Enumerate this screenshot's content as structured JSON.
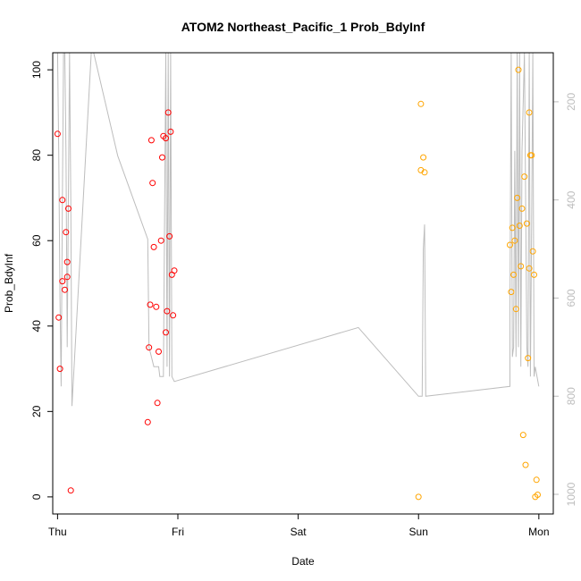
{
  "chart_data": {
    "type": "scatter",
    "title": "ATOM2 Northeast_Pacific_1 Prob_BdyInf",
    "xlabel": "Date",
    "ylabel": "Prob_BdyInf",
    "x_ticks": [
      "Thu",
      "Fri",
      "Sat",
      "Sun",
      "Mon"
    ],
    "xlim": [
      -0.04,
      4.12
    ],
    "ylim": [
      -4,
      104
    ],
    "y_ticks": [
      0,
      20,
      40,
      60,
      80,
      100
    ],
    "y2_ticks": [
      200,
      400,
      600,
      800,
      1000
    ],
    "y2lim": [
      1040,
      100
    ],
    "grid": false,
    "series": [
      {
        "color": "#ff0000",
        "points": [
          [
            0.0,
            85.0
          ],
          [
            0.01,
            42.0
          ],
          [
            0.02,
            30.0
          ],
          [
            0.04,
            69.5
          ],
          [
            0.04,
            50.5
          ],
          [
            0.06,
            48.5
          ],
          [
            0.07,
            62.0
          ],
          [
            0.08,
            51.5
          ],
          [
            0.08,
            55.0
          ],
          [
            0.09,
            67.5
          ],
          [
            0.11,
            1.5
          ],
          [
            0.75,
            17.5
          ],
          [
            0.76,
            35.0
          ],
          [
            0.77,
            45.0
          ],
          [
            0.78,
            83.5
          ],
          [
            0.79,
            73.5
          ],
          [
            0.8,
            58.5
          ],
          [
            0.82,
            44.5
          ],
          [
            0.83,
            22.0
          ],
          [
            0.84,
            34.0
          ],
          [
            0.86,
            60.0
          ],
          [
            0.87,
            79.5
          ],
          [
            0.88,
            84.5
          ],
          [
            0.9,
            38.5
          ],
          [
            0.9,
            84.0
          ],
          [
            0.91,
            43.5
          ],
          [
            0.92,
            90.0
          ],
          [
            0.93,
            61.0
          ],
          [
            0.94,
            85.5
          ],
          [
            0.95,
            52.0
          ],
          [
            0.96,
            42.5
          ],
          [
            0.97,
            53.0
          ]
        ]
      },
      {
        "color": "#ffa500",
        "points": [
          [
            3.0,
            0.0
          ],
          [
            3.02,
            92.0
          ],
          [
            3.02,
            76.5
          ],
          [
            3.04,
            79.5
          ],
          [
            3.05,
            76.0
          ],
          [
            3.76,
            59.0
          ],
          [
            3.77,
            48.0
          ],
          [
            3.78,
            63.0
          ],
          [
            3.79,
            52.0
          ],
          [
            3.8,
            60.0
          ],
          [
            3.81,
            44.0
          ],
          [
            3.82,
            70.0
          ],
          [
            3.83,
            100.0
          ],
          [
            3.84,
            63.5
          ],
          [
            3.85,
            54.0
          ],
          [
            3.86,
            67.5
          ],
          [
            3.87,
            14.5
          ],
          [
            3.88,
            75.0
          ],
          [
            3.89,
            7.5
          ],
          [
            3.9,
            64.0
          ],
          [
            3.91,
            32.5
          ],
          [
            3.92,
            90.0
          ],
          [
            3.92,
            53.5
          ],
          [
            3.93,
            80.0
          ],
          [
            3.94,
            80.0
          ],
          [
            3.95,
            57.5
          ],
          [
            3.96,
            52.0
          ],
          [
            3.97,
            0.0
          ],
          [
            3.98,
            4.0
          ],
          [
            3.99,
            0.5
          ]
        ]
      }
    ],
    "depth_line": {
      "color": "#bdbdbd",
      "points": [
        [
          0.0,
          100
        ],
        [
          0.01,
          300
        ],
        [
          0.02,
          600
        ],
        [
          0.03,
          780
        ],
        [
          0.04,
          400
        ],
        [
          0.05,
          100
        ],
        [
          0.06,
          100
        ],
        [
          0.07,
          300
        ],
        [
          0.08,
          700
        ],
        [
          0.09,
          400
        ],
        [
          0.1,
          100
        ],
        [
          0.11,
          400
        ],
        [
          0.12,
          820
        ],
        [
          0.28,
          100
        ],
        [
          0.3,
          100
        ],
        [
          0.5,
          310
        ],
        [
          0.75,
          480
        ],
        [
          0.76,
          700
        ],
        [
          0.78,
          720
        ],
        [
          0.8,
          740
        ],
        [
          0.84,
          740
        ],
        [
          0.85,
          760
        ],
        [
          0.86,
          760
        ],
        [
          0.88,
          760
        ],
        [
          0.9,
          100
        ],
        [
          0.91,
          740
        ],
        [
          0.92,
          100
        ],
        [
          0.93,
          760
        ],
        [
          0.94,
          100
        ],
        [
          0.95,
          760
        ],
        [
          0.97,
          770
        ],
        [
          2.5,
          660
        ],
        [
          3.0,
          800
        ],
        [
          3.03,
          800
        ],
        [
          3.04,
          500
        ],
        [
          3.05,
          450
        ],
        [
          3.06,
          800
        ],
        [
          3.76,
          780
        ],
        [
          3.76,
          620
        ],
        [
          3.77,
          100
        ],
        [
          3.78,
          720
        ],
        [
          3.79,
          700
        ],
        [
          3.8,
          300
        ],
        [
          3.81,
          720
        ],
        [
          3.82,
          100
        ],
        [
          3.83,
          700
        ],
        [
          3.84,
          100
        ],
        [
          3.85,
          740
        ],
        [
          3.86,
          300
        ],
        [
          3.88,
          100
        ],
        [
          3.9,
          700
        ],
        [
          3.91,
          740
        ],
        [
          3.92,
          100
        ],
        [
          3.93,
          760
        ],
        [
          3.94,
          450
        ],
        [
          3.95,
          100
        ],
        [
          3.96,
          760
        ],
        [
          3.97,
          740
        ],
        [
          4.0,
          780
        ]
      ]
    }
  }
}
